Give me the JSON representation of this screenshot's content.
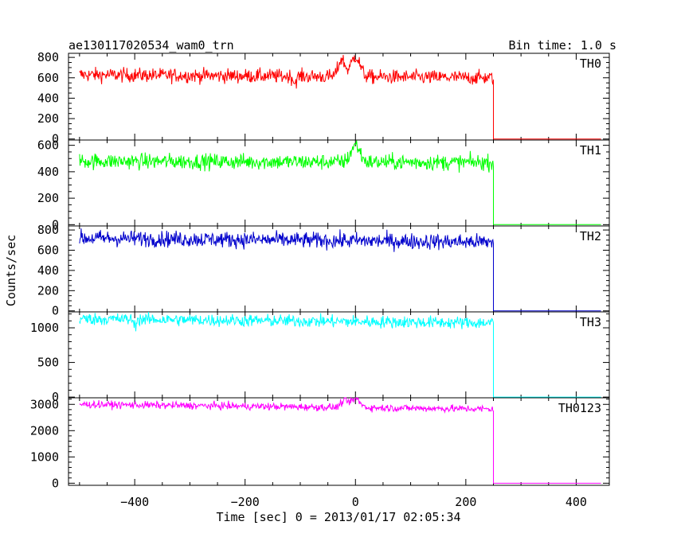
{
  "header": {
    "title": "ae130117020534_wam0_trn",
    "bin_time": "Bin time: 1.0 s"
  },
  "chart_data": {
    "type": "line",
    "xlabel": "Time [sec] 0 = 2013/01/17 02:05:34",
    "ylabel": "Counts/sec",
    "xlim": [
      -520,
      460
    ],
    "x_ticks": [
      -400,
      -200,
      0,
      200,
      400
    ],
    "x_tick_labels": [
      "−400",
      "−200",
      "0",
      "200",
      "400"
    ],
    "panels": [
      {
        "name": "TH0",
        "color": "#ff0000",
        "ylim": [
          -10,
          840
        ],
        "y_ticks": [
          0,
          200,
          400,
          600,
          800
        ],
        "y_minor": 50,
        "level": 630,
        "noise": 35,
        "slope": -30,
        "end_level": 0,
        "peaks": [
          [
            -25,
            170,
            6
          ],
          [
            0,
            200,
            8
          ]
        ],
        "dips": [
          [
            -110,
            60,
            3
          ]
        ]
      },
      {
        "name": "TH1",
        "color": "#00ff00",
        "ylim": [
          -10,
          640
        ],
        "y_ticks": [
          0,
          200,
          400,
          600
        ],
        "y_minor": 50,
        "level": 480,
        "noise": 30,
        "slope": -10,
        "end_level": 0,
        "peaks": [
          [
            0,
            130,
            8
          ]
        ],
        "dips": []
      },
      {
        "name": "TH2",
        "color": "#0000cc",
        "ylim": [
          -10,
          840
        ],
        "y_ticks": [
          0,
          200,
          400,
          600,
          800
        ],
        "y_minor": 50,
        "level": 720,
        "noise": 40,
        "slope": -40,
        "end_level": 0,
        "peaks": [],
        "dips": []
      },
      {
        "name": "TH3",
        "color": "#00ffff",
        "ylim": [
          -10,
          1230
        ],
        "y_ticks": [
          0,
          500,
          1000
        ],
        "y_minor": 100,
        "level": 1130,
        "noise": 45,
        "slope": -60,
        "end_level": 0,
        "peaks": [],
        "dips": [
          [
            -400,
            100,
            2
          ]
        ]
      },
      {
        "name": "TH0123",
        "color": "#ff00ff",
        "ylim": [
          -80,
          3250
        ],
        "y_ticks": [
          0,
          1000,
          2000,
          3000
        ],
        "y_minor": 200,
        "level": 3000,
        "noise": 70,
        "slope": -180,
        "end_level": 0,
        "peaks": [
          [
            -20,
            250,
            6
          ],
          [
            0,
            330,
            8
          ]
        ],
        "dips": []
      }
    ],
    "data_start": -500,
    "drop_time": 250,
    "data_end": 445
  }
}
